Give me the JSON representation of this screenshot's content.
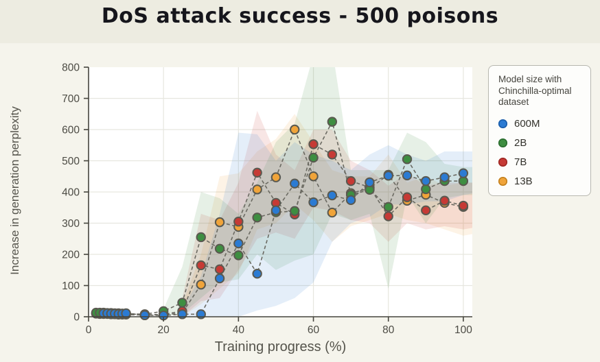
{
  "title": "DoS attack success - 500 poisons",
  "chart_data": {
    "type": "scatter-line",
    "xlabel": "Training progress (%)",
    "ylabel": "Increase in generation perplexity",
    "xlim": [
      0,
      102.4
    ],
    "ylim": [
      0,
      800
    ],
    "x_ticks": [
      0,
      20,
      40,
      60,
      80,
      100
    ],
    "y_ticks": [
      0,
      100,
      200,
      300,
      400,
      500,
      600,
      700,
      800
    ],
    "grid": true,
    "legend": {
      "title": "Model size with Chinchilla-optimal dataset",
      "position": "right"
    },
    "series": [
      {
        "name": "13B",
        "color": "#f0a43a",
        "edge": "#c07f1d",
        "x": [
          2,
          3,
          4,
          5,
          6,
          7,
          8,
          9,
          10,
          15,
          20,
          25,
          30,
          35,
          40,
          45,
          50,
          55,
          60,
          65,
          70,
          75,
          80,
          85,
          90,
          95,
          100
        ],
        "y": [
          10,
          9,
          9,
          9,
          8,
          8,
          7,
          7,
          7,
          5,
          6,
          12,
          103,
          303,
          288,
          408,
          447,
          600,
          450,
          334,
          396,
          412,
          455,
          372,
          391,
          365,
          352
        ],
        "band": {
          "x": [
            25,
            30,
            35,
            40,
            45,
            50,
            55,
            60,
            65,
            70,
            75,
            80,
            85,
            90,
            95,
            100,
            102.4
          ],
          "lo": [
            0,
            40,
            90,
            140,
            280,
            300,
            360,
            310,
            240,
            290,
            310,
            330,
            310,
            300,
            280,
            260,
            265
          ],
          "hi": [
            40,
            200,
            450,
            460,
            530,
            570,
            650,
            560,
            470,
            450,
            450,
            520,
            430,
            450,
            420,
            430,
            430
          ]
        }
      },
      {
        "name": "7B",
        "color": "#c63a35",
        "edge": "#9c2722",
        "x": [
          2,
          3,
          4,
          5,
          6,
          7,
          8,
          9,
          10,
          15,
          20,
          25,
          30,
          35,
          40,
          45,
          50,
          55,
          60,
          65,
          70,
          75,
          80,
          85,
          90,
          95,
          100
        ],
        "y": [
          11,
          10,
          10,
          10,
          9,
          9,
          9,
          8,
          8,
          6,
          8,
          18,
          165,
          152,
          305,
          462,
          365,
          328,
          553,
          520,
          435,
          415,
          322,
          383,
          341,
          372,
          356
        ],
        "band": {
          "x": [
            25,
            30,
            35,
            40,
            45,
            50,
            55,
            60,
            65,
            70,
            75,
            80,
            85,
            90,
            95,
            100,
            102.4
          ],
          "lo": [
            0,
            50,
            60,
            150,
            250,
            270,
            250,
            350,
            340,
            310,
            300,
            240,
            300,
            280,
            290,
            280,
            285
          ],
          "hi": [
            60,
            330,
            310,
            430,
            660,
            520,
            470,
            600,
            600,
            500,
            470,
            420,
            460,
            420,
            430,
            430,
            430
          ]
        }
      },
      {
        "name": "2B",
        "color": "#3e8e41",
        "edge": "#2a6b2e",
        "x": [
          2,
          3,
          4,
          5,
          6,
          7,
          8,
          9,
          10,
          15,
          20,
          25,
          30,
          35,
          40,
          45,
          50,
          55,
          60,
          65,
          70,
          75,
          80,
          85,
          90,
          95,
          100
        ],
        "y": [
          13,
          13,
          13,
          12,
          12,
          11,
          11,
          10,
          10,
          8,
          18,
          45,
          255,
          218,
          197,
          318,
          335,
          339,
          510,
          625,
          391,
          407,
          352,
          505,
          409,
          435,
          435
        ],
        "band": {
          "x": [
            20,
            25,
            30,
            35,
            40,
            45,
            50,
            55,
            60,
            65,
            70,
            75,
            80,
            85,
            90,
            95,
            100,
            102.4
          ],
          "lo": [
            0,
            10,
            60,
            110,
            120,
            200,
            150,
            180,
            200,
            330,
            310,
            330,
            90,
            390,
            300,
            380,
            390,
            390
          ],
          "hi": [
            25,
            160,
            400,
            380,
            330,
            430,
            560,
            620,
            840,
            860,
            470,
            470,
            470,
            590,
            560,
            490,
            480,
            480
          ]
        }
      },
      {
        "name": "600M",
        "color": "#2b7bd3",
        "edge": "#1a5ca8",
        "x": [
          4,
          5,
          6,
          7,
          8,
          9,
          10,
          15,
          20,
          25,
          30,
          35,
          40,
          45,
          50,
          55,
          60,
          65,
          70,
          75,
          80,
          85,
          90,
          95,
          100
        ],
        "y": [
          11,
          11,
          10,
          10,
          9,
          10,
          11,
          5,
          4,
          8,
          8,
          123,
          235,
          138,
          341,
          427,
          367,
          389,
          374,
          431,
          452,
          453,
          435,
          447,
          460
        ],
        "band": {
          "x": [
            25,
            30,
            35,
            40,
            45,
            50,
            55,
            60,
            65,
            70,
            75,
            80,
            85,
            90,
            95,
            100,
            102.4
          ],
          "lo": [
            0,
            0,
            0,
            0,
            20,
            35,
            60,
            110,
            240,
            300,
            320,
            360,
            360,
            370,
            370,
            390,
            395
          ],
          "hi": [
            25,
            130,
            330,
            590,
            585,
            500,
            560,
            520,
            500,
            470,
            520,
            550,
            520,
            500,
            530,
            530,
            530
          ]
        }
      }
    ],
    "legend_order": [
      "600M",
      "2B",
      "7B",
      "13B"
    ],
    "style": {
      "background": "#f5f4ec",
      "header_background": "#edece1",
      "plot_background": "#ffffff",
      "grid_color": "#e6e6df",
      "axis_color": "#45443d",
      "tick_label_color": "#4c4b44",
      "line_color": "#6b6a62",
      "marker_edge": "#5a5950",
      "band_opacity": 0.13
    }
  }
}
